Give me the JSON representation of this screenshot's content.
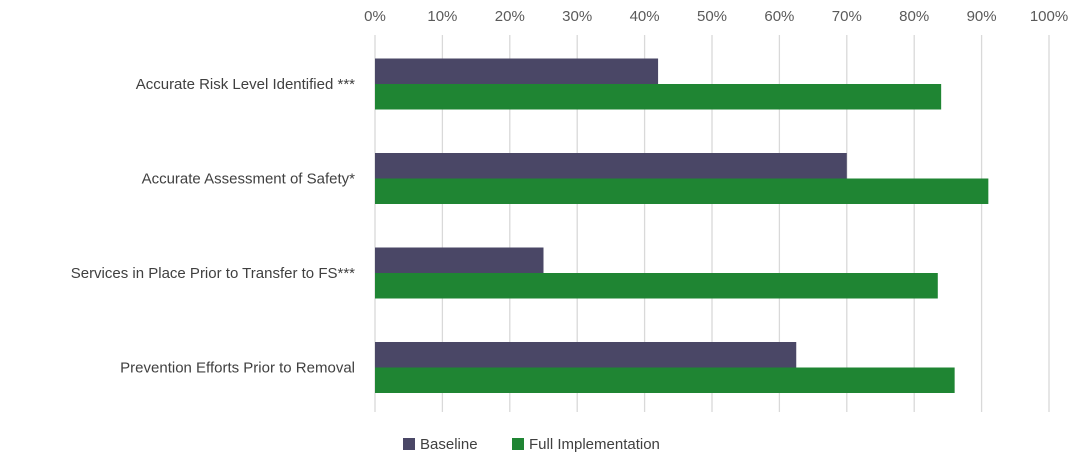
{
  "chart_data": {
    "type": "bar",
    "orientation": "horizontal",
    "categories": [
      "Accurate Risk Level Identified ***",
      "Accurate Assessment of Safety*",
      "Services in Place Prior to Transfer to FS***",
      "Prevention Efforts Prior to Removal"
    ],
    "series": [
      {
        "name": "Baseline",
        "color": "#4a4766",
        "values": [
          42,
          70,
          25,
          62.5
        ]
      },
      {
        "name": "Full Implementation",
        "color": "#1f8533",
        "values": [
          84,
          91,
          83.5,
          86
        ]
      }
    ],
    "xlim": [
      0,
      100
    ],
    "xticks": [
      0,
      10,
      20,
      30,
      40,
      50,
      60,
      70,
      80,
      90,
      100
    ],
    "tick_suffix": "%",
    "x_axis_position": "top",
    "grid": true,
    "legend": "bottom"
  }
}
